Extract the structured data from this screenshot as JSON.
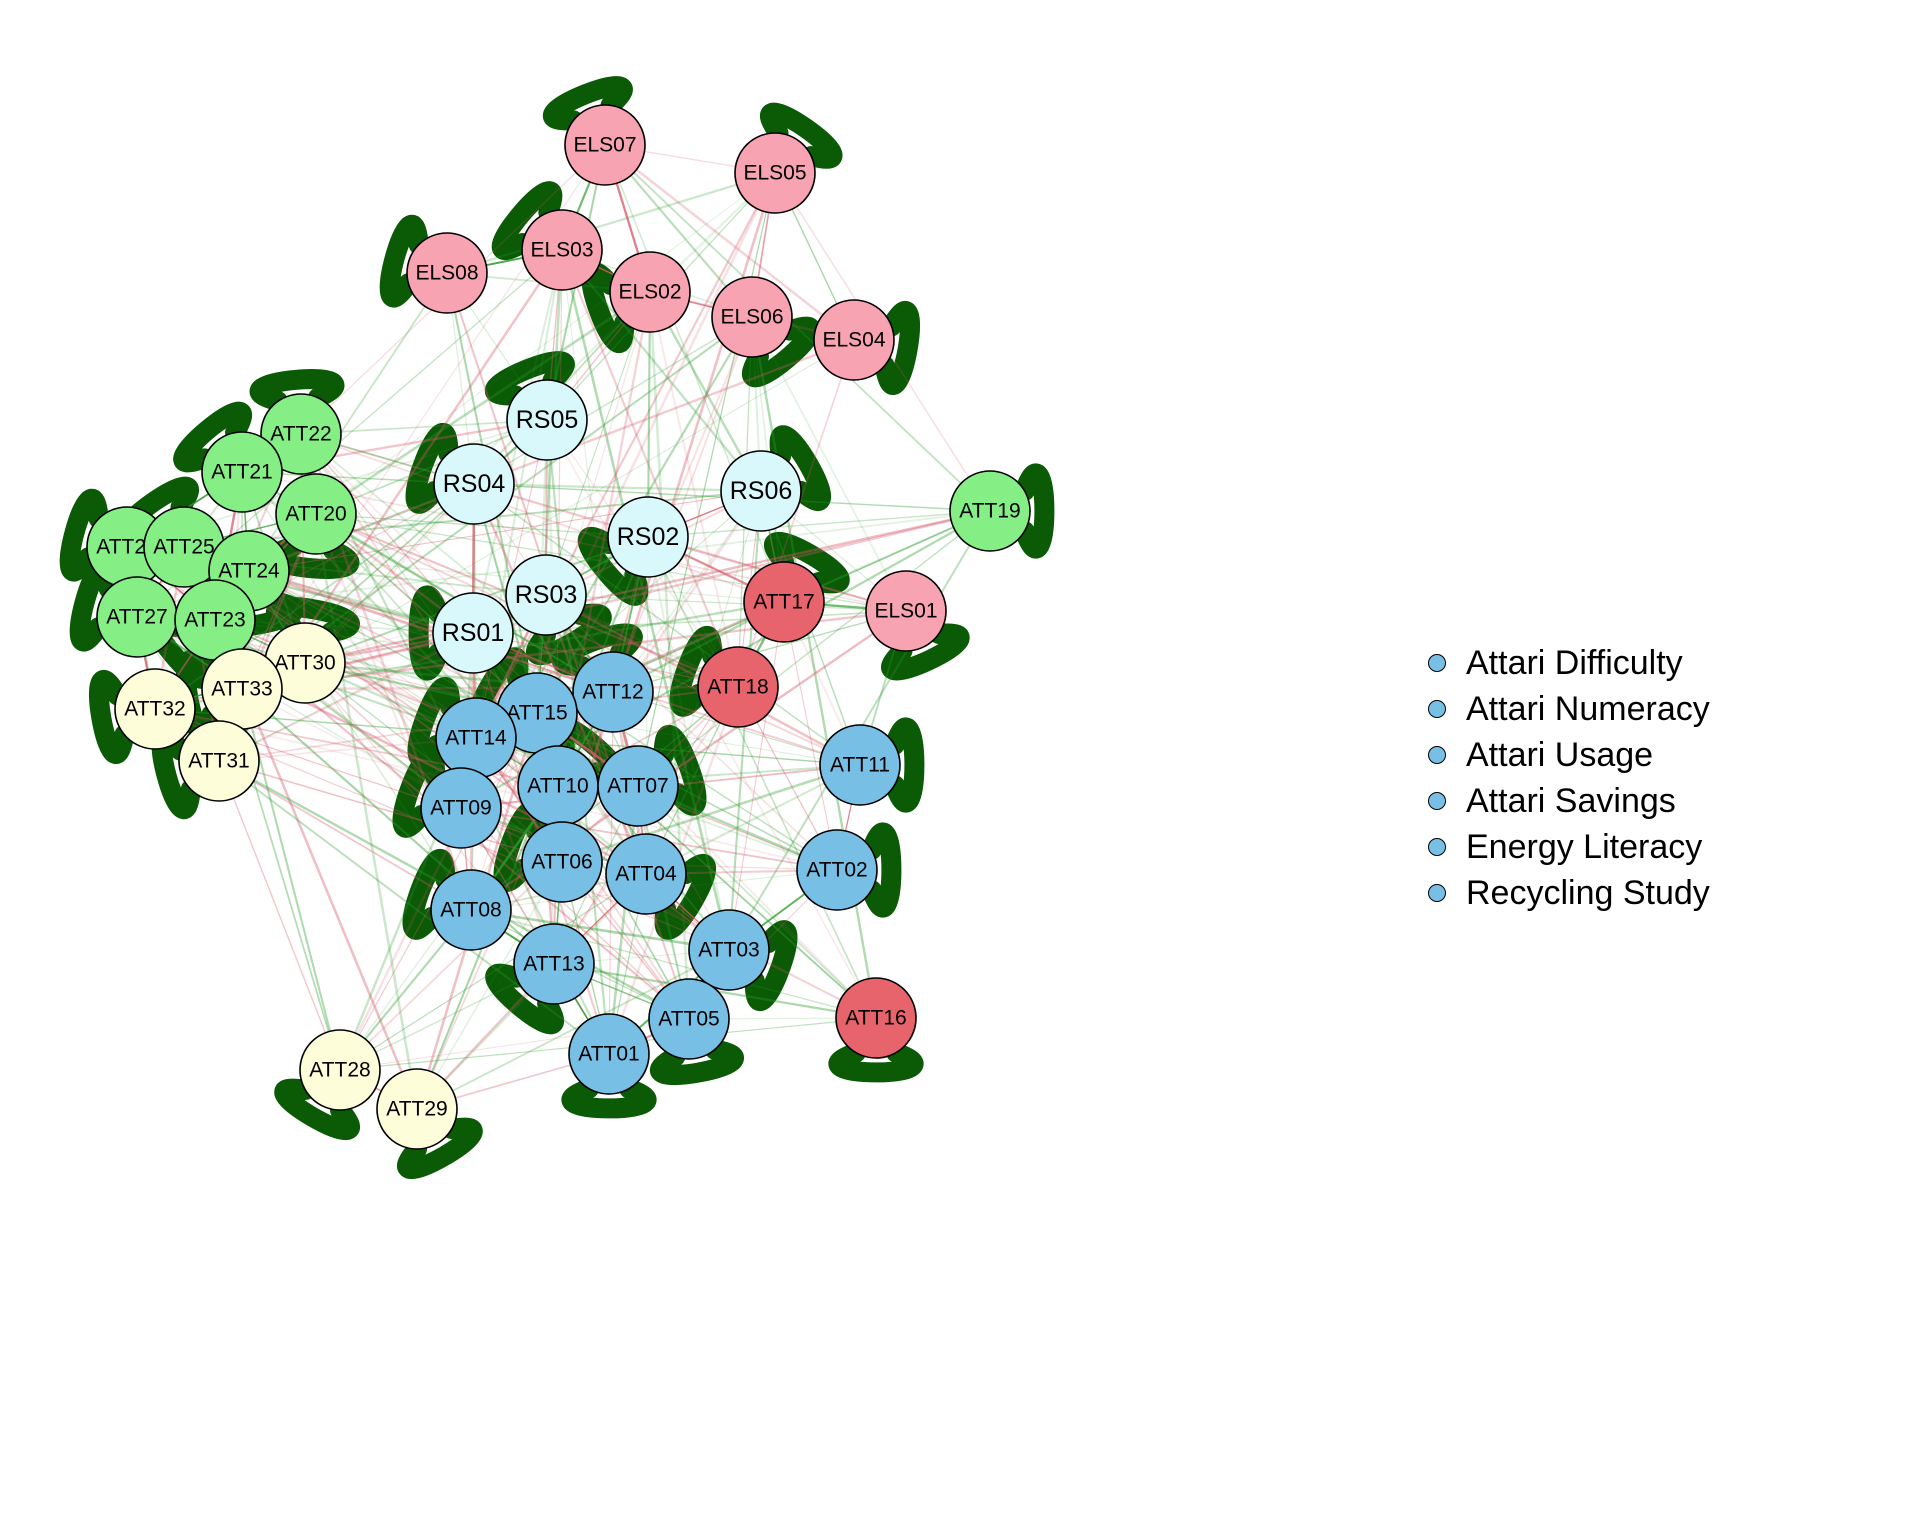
{
  "nodes": [
    {
      "id": "ELS07",
      "group": "els"
    },
    {
      "id": "ELS05",
      "group": "els"
    },
    {
      "id": "ELS03",
      "group": "els"
    },
    {
      "id": "ELS08",
      "group": "els"
    },
    {
      "id": "ELS02",
      "group": "els"
    },
    {
      "id": "ELS06",
      "group": "els"
    },
    {
      "id": "ELS04",
      "group": "els"
    },
    {
      "id": "ELS01",
      "group": "els"
    },
    {
      "id": "RS05",
      "group": "rs"
    },
    {
      "id": "RS04",
      "group": "rs"
    },
    {
      "id": "RS06",
      "group": "rs"
    },
    {
      "id": "RS02",
      "group": "rs"
    },
    {
      "id": "RS03",
      "group": "rs"
    },
    {
      "id": "RS01",
      "group": "rs"
    },
    {
      "id": "ATT22",
      "group": "green"
    },
    {
      "id": "ATT21",
      "group": "green"
    },
    {
      "id": "ATT20",
      "group": "green"
    },
    {
      "id": "ATT26",
      "group": "green"
    },
    {
      "id": "ATT25",
      "group": "green"
    },
    {
      "id": "ATT24",
      "group": "green"
    },
    {
      "id": "ATT27",
      "group": "green"
    },
    {
      "id": "ATT23",
      "group": "green"
    },
    {
      "id": "ATT19",
      "group": "green"
    },
    {
      "id": "ATT30",
      "group": "cream"
    },
    {
      "id": "ATT33",
      "group": "cream"
    },
    {
      "id": "ATT32",
      "group": "cream"
    },
    {
      "id": "ATT31",
      "group": "cream"
    },
    {
      "id": "ATT28",
      "group": "cream"
    },
    {
      "id": "ATT29",
      "group": "cream"
    },
    {
      "id": "ATT17",
      "group": "red"
    },
    {
      "id": "ATT18",
      "group": "red"
    },
    {
      "id": "ATT16",
      "group": "red"
    },
    {
      "id": "ATT12",
      "group": "blue"
    },
    {
      "id": "ATT15",
      "group": "blue"
    },
    {
      "id": "ATT14",
      "group": "blue"
    },
    {
      "id": "ATT10",
      "group": "blue"
    },
    {
      "id": "ATT07",
      "group": "blue"
    },
    {
      "id": "ATT09",
      "group": "blue"
    },
    {
      "id": "ATT11",
      "group": "blue"
    },
    {
      "id": "ATT06",
      "group": "blue"
    },
    {
      "id": "ATT04",
      "group": "blue"
    },
    {
      "id": "ATT02",
      "group": "blue"
    },
    {
      "id": "ATT08",
      "group": "blue"
    },
    {
      "id": "ATT03",
      "group": "blue"
    },
    {
      "id": "ATT13",
      "group": "blue"
    },
    {
      "id": "ATT05",
      "group": "blue"
    },
    {
      "id": "ATT01",
      "group": "blue"
    }
  ],
  "colors": {
    "els": "#f7a3b1",
    "rs": "#d9f8fb",
    "green": "#85ef85",
    "cream": "#fdfdd9",
    "red": "#e8646d",
    "blue": "#77bfe5",
    "loop": "#0b5a06",
    "edge_positive": "#2a9a2a",
    "edge_negative": "#d65a6a",
    "legend_dot": "#77bfe5"
  },
  "legend": {
    "items": [
      "Attari Difficulty",
      "Attari Numeracy",
      "Attari Usage",
      "Attari Savings",
      "Energy Literacy",
      "Recycling Study"
    ]
  }
}
